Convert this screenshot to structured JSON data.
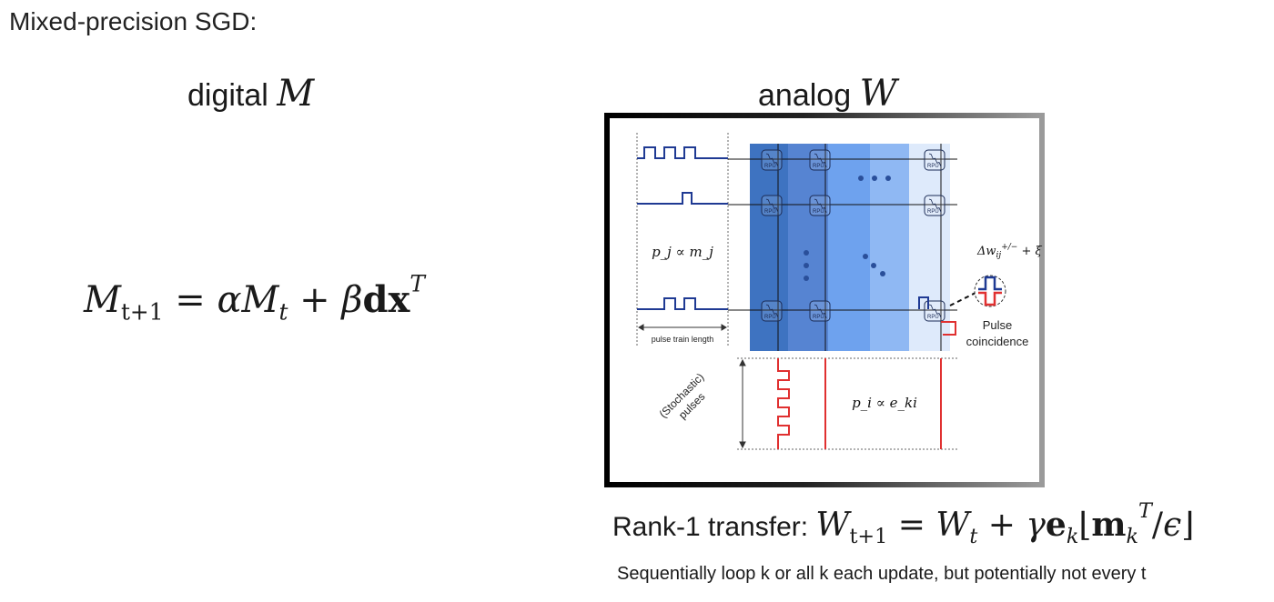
{
  "title": "Mixed-precision SGD:",
  "digital": {
    "word": "digital",
    "symbol": "M",
    "update": {
      "lhs": "M",
      "lhs_sub": "t+1",
      "alpha": "α",
      "M": "M",
      "M_sub": "t",
      "beta": "β",
      "dx": "dx",
      "T": "T"
    }
  },
  "analog": {
    "word": "analog",
    "symbol": "W"
  },
  "diagram": {
    "device_label": "RPU",
    "pj_label": "p_j ∝ m_j",
    "pi_label": "p_i ∝ e_ki",
    "pulse_train_length": "pulse train length",
    "stochastic_line1": "(Stochastic)",
    "stochastic_line2": "pulses",
    "delta_w": "Δw_ij^{+/−} + ξ",
    "coincidence_line1": "Pulse",
    "coincidence_line2": "coincidence",
    "colors": {
      "pulse_blue": "#1f3a93",
      "pulse_red": "#e03030",
      "column_shades": [
        "#3e73c1",
        "#5684d2",
        "#6ea2ee",
        "#8fb8f3",
        "#deeafb"
      ]
    }
  },
  "rank1": {
    "prefix": "Rank-1 transfer: ",
    "W": "W",
    "W_sub1": "t+1",
    "W_sub2": "t",
    "gamma": "γ",
    "e": "e",
    "e_sub": "k",
    "m": "m",
    "m_sub": "k",
    "m_sup": "T",
    "eps": "ϵ"
  },
  "footnote": "Sequentially loop k or all k each update, but potentially not every t"
}
